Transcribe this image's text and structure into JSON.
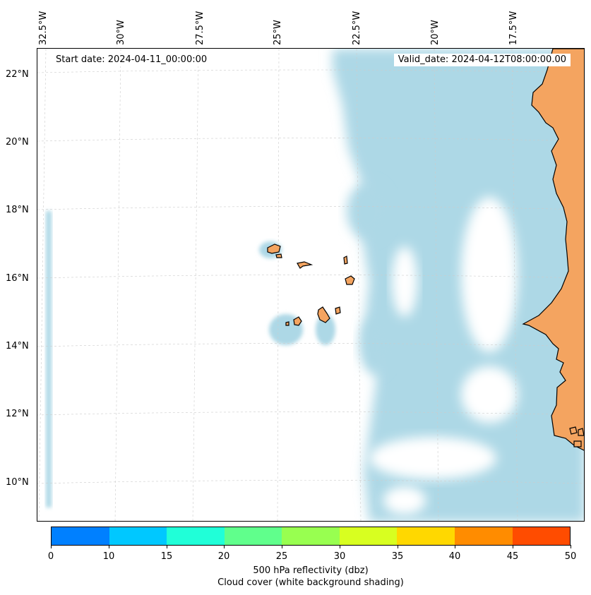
{
  "map": {
    "start_date": "Start date: 2024-04-11_00:00:00",
    "valid_date": "Valid_date: 2024-04-12T08:00:00.00",
    "lon_labels": [
      "32.5°W",
      "30°W",
      "27.5°W",
      "25°W",
      "22.5°W",
      "20°W",
      "17.5°W"
    ],
    "lat_labels": [
      "22°N",
      "20°N",
      "18°N",
      "16°N",
      "14°N",
      "12°N",
      "10°N"
    ],
    "colors": {
      "land": "#f4a460",
      "cloud": "#add8e6",
      "coastline": "#000000",
      "gridline": "#cccccc"
    }
  },
  "colorbar": {
    "ticks": [
      "0",
      "10",
      "15",
      "20",
      "25",
      "30",
      "35",
      "40",
      "45",
      "50"
    ],
    "colors": [
      "#0080ff",
      "#00c8ff",
      "#20ffd8",
      "#60ff8c",
      "#98ff50",
      "#d8ff20",
      "#ffd800",
      "#ff8c00",
      "#ff4c00"
    ],
    "label_line1": "500 hPa reflectivity (dbz)",
    "label_line2": "Cloud cover (white background shading)"
  }
}
